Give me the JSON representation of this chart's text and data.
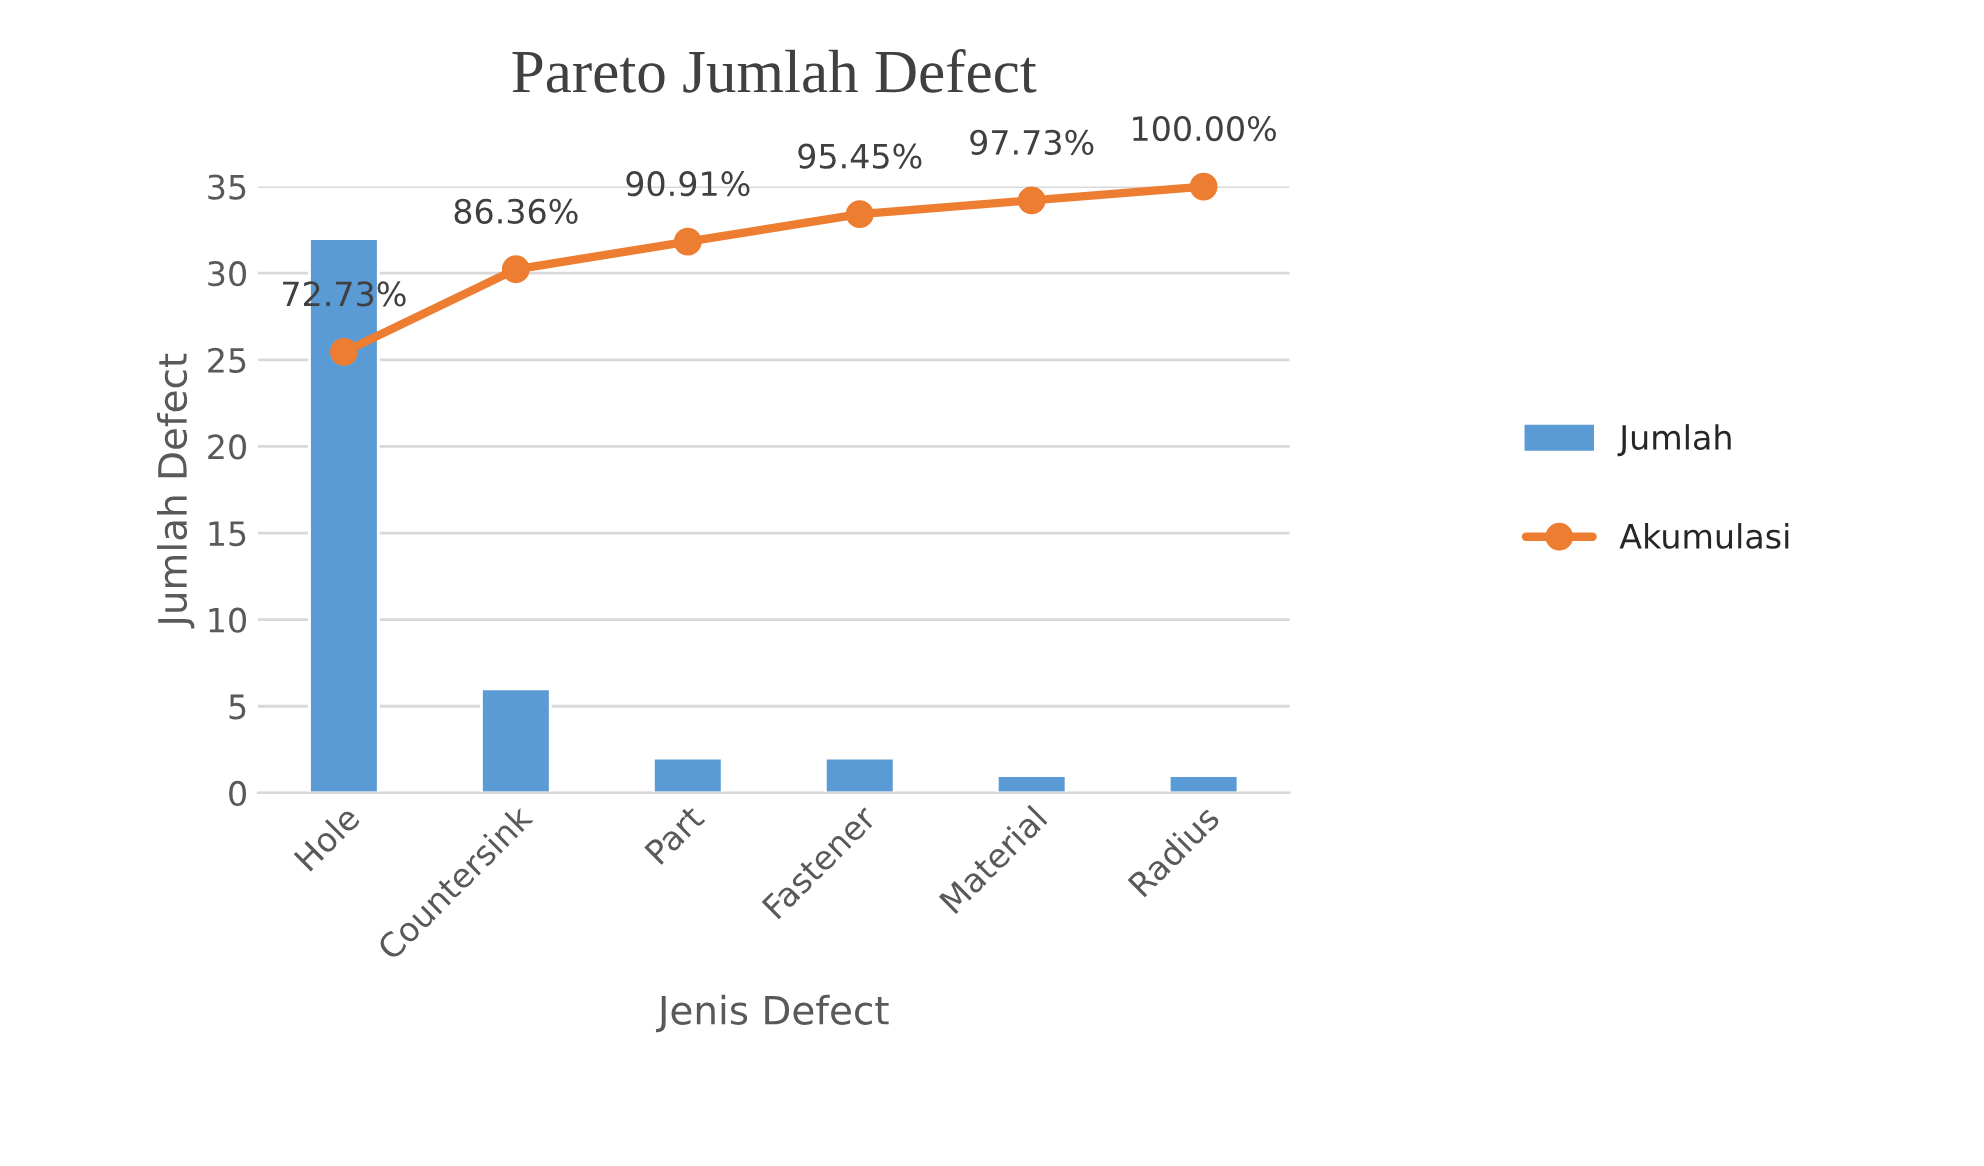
{
  "chart_data": {
    "type": "bar",
    "title": "Pareto Jumlah Defect",
    "xlabel": "Jenis Defect",
    "ylabel": "Jumlah Defect",
    "categories": [
      "Hole",
      "Countersink",
      "Part",
      "Fastener",
      "Material",
      "Radius"
    ],
    "series": [
      {
        "name": "Jumlah",
        "color": "#5b9bd5",
        "values": [
          32,
          6,
          2,
          2,
          1,
          1
        ]
      },
      {
        "name": "Akumulasi",
        "type": "line",
        "axis": "y2",
        "color": "#ed7d31",
        "marker": "circle",
        "values": [
          72.73,
          86.36,
          90.91,
          95.45,
          97.73,
          100.0
        ],
        "value_labels": [
          "72.73%",
          "86.36%",
          "90.91%",
          "95.45%",
          "97.73%",
          "100.00%"
        ]
      }
    ],
    "ylim": [
      0,
      35
    ],
    "yticks": [
      0,
      5,
      10,
      15,
      20,
      25,
      30,
      35
    ],
    "y2lim": [
      0,
      100
    ],
    "grid": "y",
    "legend": "right"
  }
}
